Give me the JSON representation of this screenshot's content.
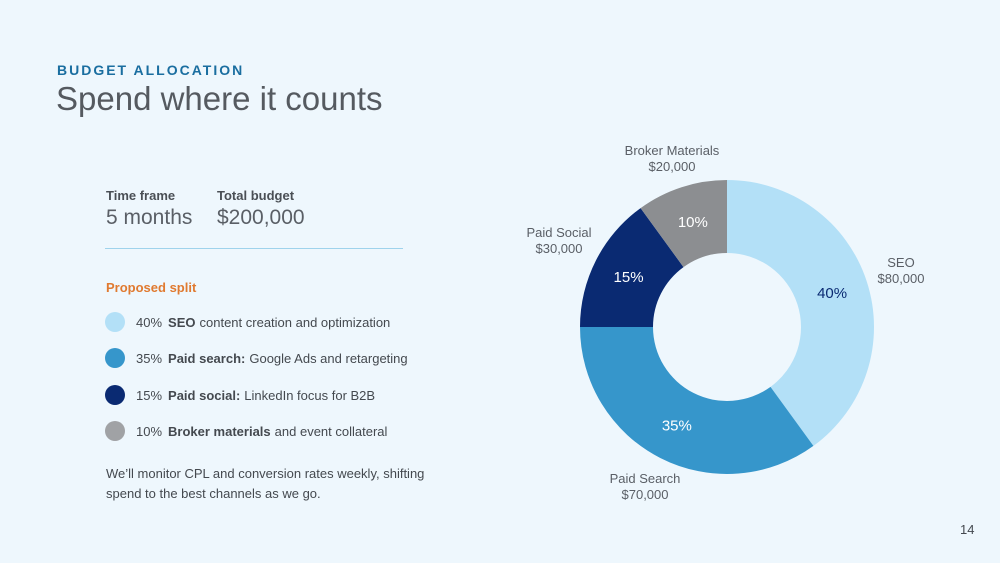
{
  "eyebrow": "BUDGET ALLOCATION",
  "title": "Spend where it counts",
  "timeframe": {
    "label": "Time frame",
    "value": "5 months"
  },
  "budget": {
    "label": "Total budget",
    "value": "$200,000"
  },
  "split_title": "Proposed split",
  "legend": [
    {
      "pct": "40%",
      "bold": "SEO",
      "rest": "content creation and optimization",
      "color": "#b3e0f7"
    },
    {
      "pct": "35%",
      "bold": "Paid search:",
      "rest": "Google Ads and retargeting",
      "color": "#3696cb"
    },
    {
      "pct": "15%",
      "bold": "Paid social:",
      "rest": "LinkedIn focus for B2B",
      "color": "#0a2a72"
    },
    {
      "pct": "10%",
      "bold": "Broker materials",
      "rest": "and event collateral",
      "color": "#a0a2a5"
    }
  ],
  "note": "We’ll monitor CPL and conversion rates weekly, shifting spend to the best channels as we go.",
  "page_number": "14",
  "chart_data": {
    "type": "pie",
    "variant": "donut",
    "slices": [
      {
        "name": "SEO",
        "amount": "$80,000",
        "value": 40,
        "label": "40%",
        "color": "#b3e0f7",
        "label_color": "#0a2a72"
      },
      {
        "name": "Paid Search",
        "amount": "$70,000",
        "value": 35,
        "label": "35%",
        "color": "#3696cb",
        "label_color": "#ffffff"
      },
      {
        "name": "Paid Social",
        "amount": "$30,000",
        "value": 15,
        "label": "15%",
        "color": "#0a2a72",
        "label_color": "#ffffff"
      },
      {
        "name": "Broker Materials",
        "amount": "$20,000",
        "value": 10,
        "label": "10%",
        "color": "#8c8e91",
        "label_color": "#ffffff"
      }
    ]
  }
}
